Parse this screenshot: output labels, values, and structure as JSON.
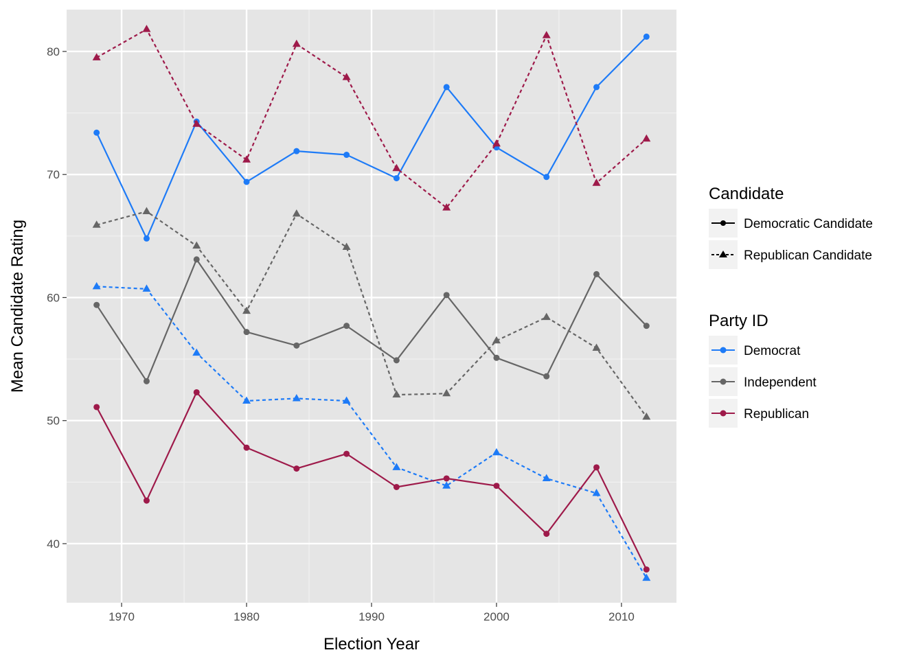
{
  "chart_data": {
    "type": "line",
    "xlabel": "Election Year",
    "ylabel": "Mean Candidate Rating",
    "xlim": [
      1965.6,
      2014.4
    ],
    "ylim": [
      35.2,
      83.4
    ],
    "x_ticks": [
      1970,
      1980,
      1990,
      2000,
      2010
    ],
    "y_ticks": [
      40,
      50,
      60,
      70,
      80
    ],
    "grid": true,
    "legend_position": "right",
    "x": [
      1968,
      1972,
      1976,
      1980,
      1984,
      1988,
      1992,
      1996,
      2000,
      2004,
      2008,
      2012
    ],
    "legends": [
      {
        "title": "Candidate",
        "entries": [
          {
            "label": "Democratic Candidate",
            "line": "solid",
            "shape": "circle"
          },
          {
            "label": "Republican Candidate",
            "line": "dashed",
            "shape": "triangle"
          }
        ]
      },
      {
        "title": "Party ID",
        "entries": [
          {
            "label": "Democrat",
            "color": "#1E7BF7"
          },
          {
            "label": "Independent",
            "color": "#666666"
          },
          {
            "label": "Republican",
            "color": "#9E1A4A"
          }
        ]
      }
    ],
    "series": [
      {
        "party": "Democrat",
        "candidate": "Democratic Candidate",
        "color": "#1E7BF7",
        "line": "solid",
        "shape": "circle",
        "values": [
          73.4,
          64.8,
          74.3,
          69.4,
          71.9,
          71.6,
          69.7,
          77.1,
          72.2,
          69.8,
          77.1,
          81.2
        ]
      },
      {
        "party": "Democrat",
        "candidate": "Republican Candidate",
        "color": "#1E7BF7",
        "line": "dashed",
        "shape": "triangle",
        "values": [
          60.9,
          60.7,
          55.5,
          51.6,
          51.8,
          51.6,
          46.2,
          44.7,
          47.4,
          45.3,
          44.1,
          37.2
        ]
      },
      {
        "party": "Independent",
        "candidate": "Democratic Candidate",
        "color": "#666666",
        "line": "solid",
        "shape": "circle",
        "values": [
          59.4,
          53.2,
          63.1,
          57.2,
          56.1,
          57.7,
          54.9,
          60.2,
          55.1,
          53.6,
          61.9,
          57.7
        ]
      },
      {
        "party": "Independent",
        "candidate": "Republican Candidate",
        "color": "#666666",
        "line": "dashed",
        "shape": "triangle",
        "values": [
          65.9,
          67.0,
          64.2,
          58.9,
          66.8,
          64.1,
          52.1,
          52.2,
          56.5,
          58.4,
          55.9,
          50.3
        ]
      },
      {
        "party": "Republican",
        "candidate": "Democratic Candidate",
        "color": "#9E1A4A",
        "line": "solid",
        "shape": "circle",
        "values": [
          51.1,
          43.5,
          52.3,
          47.8,
          46.1,
          47.3,
          44.6,
          45.3,
          44.7,
          40.8,
          46.2,
          37.9
        ]
      },
      {
        "party": "Republican",
        "candidate": "Republican Candidate",
        "color": "#9E1A4A",
        "line": "dashed",
        "shape": "triangle",
        "values": [
          79.5,
          81.8,
          74.1,
          71.2,
          80.6,
          77.9,
          70.5,
          67.3,
          72.5,
          81.3,
          69.3,
          72.9
        ]
      }
    ]
  }
}
